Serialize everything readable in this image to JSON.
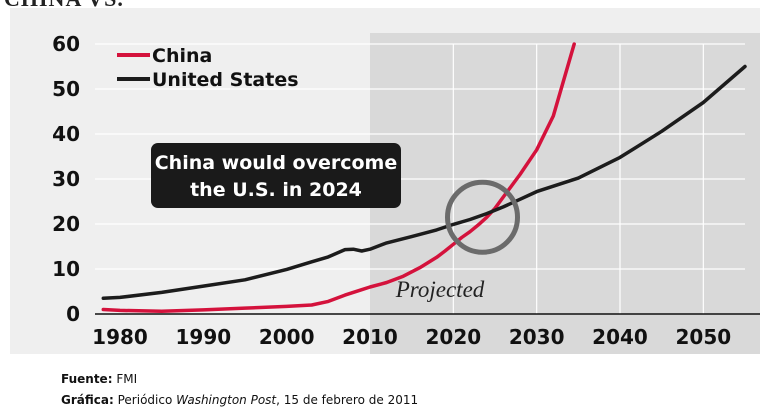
{
  "header": {
    "title_cut": "CHINA VS."
  },
  "chart_data": {
    "type": "line",
    "title": "",
    "xlabel": "",
    "ylabel": "",
    "xlim": [
      1977,
      2055
    ],
    "ylim": [
      0,
      60
    ],
    "x_ticks": [
      1980,
      1990,
      2000,
      2010,
      2020,
      2030,
      2040,
      2050
    ],
    "y_ticks": [
      0,
      10,
      20,
      30,
      40,
      50,
      60
    ],
    "grid": true,
    "legend": "top-left",
    "projected_from": 2010,
    "projected_label": "Projected",
    "annotation": {
      "line1": "China would overcome",
      "line2": "the U.S. in 2024",
      "crossover": {
        "x": 2023.5,
        "y": 21.5
      }
    },
    "series": [
      {
        "name": "China",
        "color": "#d4123c",
        "x": [
          1978,
          1980,
          1985,
          1990,
          1995,
          2000,
          2003,
          2005,
          2007,
          2009,
          2010,
          2012,
          2014,
          2016,
          2018,
          2019,
          2020,
          2021,
          2022,
          2023,
          2024,
          2025,
          2026,
          2028,
          2030,
          2032,
          2034.5
        ],
        "values": [
          1.0,
          0.8,
          0.6,
          0.9,
          1.3,
          1.7,
          2.0,
          2.8,
          4.2,
          5.4,
          6.0,
          7.0,
          8.4,
          10.3,
          12.6,
          14.0,
          15.5,
          17.0,
          18.3,
          19.8,
          21.5,
          23.5,
          26.0,
          31.0,
          36.5,
          44.0,
          60.0
        ]
      },
      {
        "name": "United States",
        "color": "#1c1c1c",
        "x": [
          1978,
          1980,
          1985,
          1990,
          1995,
          2000,
          2003,
          2005,
          2007,
          2008,
          2009,
          2010,
          2012,
          2015,
          2018,
          2020,
          2022,
          2024,
          2026,
          2028,
          2030,
          2035,
          2040,
          2045,
          2050,
          2055
        ],
        "values": [
          3.5,
          3.7,
          4.8,
          6.2,
          7.6,
          9.9,
          11.6,
          12.7,
          14.3,
          14.4,
          14.0,
          14.4,
          15.8,
          17.2,
          18.7,
          19.9,
          21.0,
          22.3,
          23.8,
          25.5,
          27.2,
          30.2,
          34.8,
          40.6,
          47.0,
          55.0
        ]
      }
    ]
  },
  "footer": {
    "source_label": "Fuente:",
    "source_value": "FMI",
    "graphic_label": "Gráfica:",
    "graphic_prefix": "Periódico",
    "graphic_pub": "Washington Post",
    "graphic_suffix": ", 15 de febrero de 2011"
  }
}
